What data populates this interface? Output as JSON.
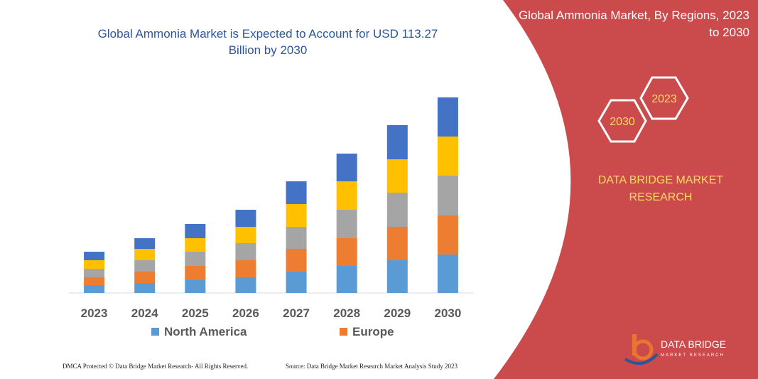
{
  "chart_data": {
    "type": "bar",
    "stacked": true,
    "title": "Global Ammonia Market is Expected to Account for USD 113.27 Billion by 2030",
    "categories": [
      "2023",
      "2024",
      "2025",
      "2026",
      "2027",
      "2028",
      "2029",
      "2030"
    ],
    "series": [
      {
        "name": "North America",
        "color": "#5b9bd5",
        "values": [
          11,
          14,
          18,
          22,
          30,
          38,
          46,
          54
        ]
      },
      {
        "name": "Europe",
        "color": "#ed7d31",
        "values": [
          11,
          16,
          20,
          24,
          32,
          39,
          47,
          55
        ]
      },
      {
        "color": "#a5a5a5",
        "values": [
          12,
          16,
          20,
          24,
          31,
          40,
          48,
          56
        ]
      },
      {
        "color": "#ffc000",
        "values": [
          12,
          16,
          19,
          23,
          32,
          40,
          47,
          55
        ]
      },
      {
        "color": "#4472c4",
        "values": [
          12,
          15,
          20,
          24,
          32,
          39,
          48,
          55
        ]
      }
    ]
  },
  "panel": {
    "title": "Global Ammonia Market, By Regions, 2023 to 2030",
    "hex_upper": "2023",
    "hex_lower": "2030",
    "brand": "DATA BRIDGE MARKET RESEARCH"
  },
  "logo": {
    "name": "DATA BRIDGE",
    "tagline": "MARKET RESEARCH"
  },
  "footer": {
    "copyright": "DMCA Protected © Data Bridge Market Research- All Rights Reserved.",
    "source": "Source: Data Bridge Market Research  Market Analysis Study 2023"
  }
}
